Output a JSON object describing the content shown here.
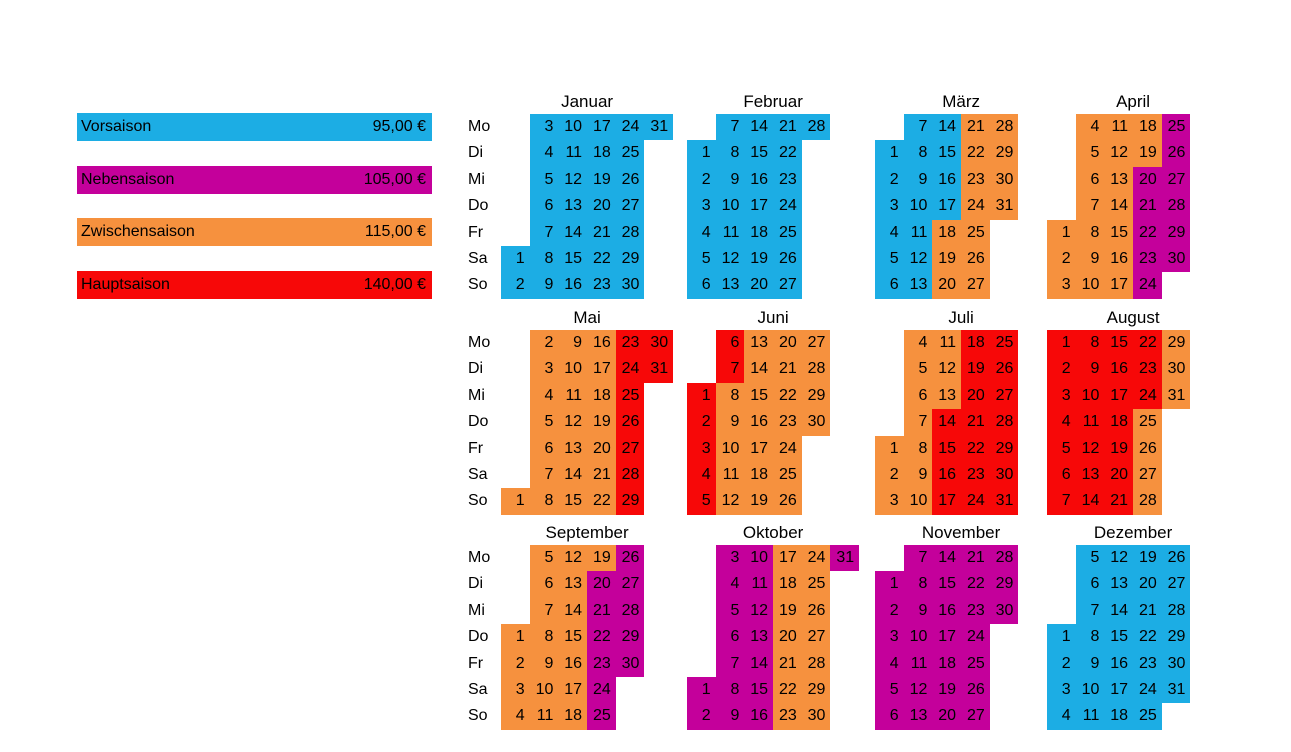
{
  "page": {
    "background": "#ffffff"
  },
  "legend": {
    "items": [
      {
        "id": "vorsaison",
        "label": "Vorsaison",
        "price": "95,00 €",
        "season_key": "b"
      },
      {
        "id": "nebensaison",
        "label": "Nebensaison",
        "price": "105,00 €",
        "season_key": "m"
      },
      {
        "id": "zwischensaison",
        "label": "Zwischensaison",
        "price": "115,00 €",
        "season_key": "o"
      },
      {
        "id": "hauptsaison",
        "label": "Hauptsaison",
        "price": "140,00 €",
        "season_key": "r"
      }
    ]
  },
  "calendar": {
    "weekday_labels": [
      "Mo",
      "Di",
      "Mi",
      "Do",
      "Fr",
      "Sa",
      "So"
    ],
    "season_colors": {
      "b": "#1CADE4",
      "m": "#C4009B",
      "o": "#F6913E",
      "r": "#F70808"
    },
    "season_names": {
      "b": "Vorsaison",
      "m": "Nebensaison",
      "o": "Zwischensaison",
      "r": "Hauptsaison"
    },
    "months": [
      {
        "name": "Januar",
        "rows": [
          [
            "",
            "3b",
            "10b",
            "17b",
            "24b",
            "31b"
          ],
          [
            "",
            "4b",
            "11b",
            "18b",
            "25b",
            ""
          ],
          [
            "",
            "5b",
            "12b",
            "19b",
            "26b",
            ""
          ],
          [
            "",
            "6b",
            "13b",
            "20b",
            "27b",
            ""
          ],
          [
            "",
            "7b",
            "14b",
            "21b",
            "28b",
            ""
          ],
          [
            "1b",
            "8b",
            "15b",
            "22b",
            "29b",
            ""
          ],
          [
            "2b",
            "9b",
            "16b",
            "23b",
            "30b",
            ""
          ]
        ]
      },
      {
        "name": "Februar",
        "rows": [
          [
            "",
            "7b",
            "14b",
            "21b",
            "28b",
            ""
          ],
          [
            "1b",
            "8b",
            "15b",
            "22b",
            "",
            ""
          ],
          [
            "2b",
            "9b",
            "16b",
            "23b",
            "",
            ""
          ],
          [
            "3b",
            "10b",
            "17b",
            "24b",
            "",
            ""
          ],
          [
            "4b",
            "11b",
            "18b",
            "25b",
            "",
            ""
          ],
          [
            "5b",
            "12b",
            "19b",
            "26b",
            "",
            ""
          ],
          [
            "6b",
            "13b",
            "20b",
            "27b",
            "",
            ""
          ]
        ]
      },
      {
        "name": "März",
        "rows": [
          [
            "",
            "7b",
            "14b",
            "21o",
            "28o",
            ""
          ],
          [
            "1b",
            "8b",
            "15b",
            "22o",
            "29o",
            ""
          ],
          [
            "2b",
            "9b",
            "16b",
            "23o",
            "30o",
            ""
          ],
          [
            "3b",
            "10b",
            "17b",
            "24o",
            "31o",
            ""
          ],
          [
            "4b",
            "11b",
            "18o",
            "25o",
            "",
            ""
          ],
          [
            "5b",
            "12b",
            "19o",
            "26o",
            "",
            ""
          ],
          [
            "6b",
            "13b",
            "20o",
            "27o",
            "",
            ""
          ]
        ]
      },
      {
        "name": "April",
        "rows": [
          [
            "",
            "4o",
            "11o",
            "18o",
            "25m",
            ""
          ],
          [
            "",
            "5o",
            "12o",
            "19o",
            "26m",
            ""
          ],
          [
            "",
            "6o",
            "13o",
            "20m",
            "27m",
            ""
          ],
          [
            "",
            "7o",
            "14o",
            "21m",
            "28m",
            ""
          ],
          [
            "1o",
            "8o",
            "15o",
            "22m",
            "29m",
            ""
          ],
          [
            "2o",
            "9o",
            "16o",
            "23m",
            "30m",
            ""
          ],
          [
            "3o",
            "10o",
            "17o",
            "24m",
            "",
            ""
          ]
        ]
      },
      {
        "name": "Mai",
        "rows": [
          [
            "",
            "2o",
            "9o",
            "16o",
            "23r",
            "30r"
          ],
          [
            "",
            "3o",
            "10o",
            "17o",
            "24r",
            "31r"
          ],
          [
            "",
            "4o",
            "11o",
            "18o",
            "25r",
            ""
          ],
          [
            "",
            "5o",
            "12o",
            "19o",
            "26r",
            ""
          ],
          [
            "",
            "6o",
            "13o",
            "20o",
            "27r",
            ""
          ],
          [
            "",
            "7o",
            "14o",
            "21o",
            "28r",
            ""
          ],
          [
            "1o",
            "8o",
            "15o",
            "22o",
            "29r",
            ""
          ]
        ]
      },
      {
        "name": "Juni",
        "rows": [
          [
            "",
            "6r",
            "13o",
            "20o",
            "27o",
            ""
          ],
          [
            "",
            "7r",
            "14o",
            "21o",
            "28o",
            ""
          ],
          [
            "1r",
            "8o",
            "15o",
            "22o",
            "29o",
            ""
          ],
          [
            "2r",
            "9o",
            "16o",
            "23o",
            "30o",
            ""
          ],
          [
            "3r",
            "10o",
            "17o",
            "24o",
            "",
            ""
          ],
          [
            "4r",
            "11o",
            "18o",
            "25o",
            "",
            ""
          ],
          [
            "5r",
            "12o",
            "19o",
            "26o",
            "",
            ""
          ]
        ]
      },
      {
        "name": "Juli",
        "rows": [
          [
            "",
            "4o",
            "11o",
            "18r",
            "25r",
            ""
          ],
          [
            "",
            "5o",
            "12o",
            "19r",
            "26r",
            ""
          ],
          [
            "",
            "6o",
            "13o",
            "20r",
            "27r",
            ""
          ],
          [
            "",
            "7o",
            "14r",
            "21r",
            "28r",
            ""
          ],
          [
            "1o",
            "8o",
            "15r",
            "22r",
            "29r",
            ""
          ],
          [
            "2o",
            "9o",
            "16r",
            "23r",
            "30r",
            ""
          ],
          [
            "3o",
            "10o",
            "17r",
            "24r",
            "31r",
            ""
          ]
        ]
      },
      {
        "name": "August",
        "rows": [
          [
            "1r",
            "8r",
            "15r",
            "22r",
            "29o",
            ""
          ],
          [
            "2r",
            "9r",
            "16r",
            "23r",
            "30o",
            ""
          ],
          [
            "3r",
            "10r",
            "17r",
            "24r",
            "31o",
            ""
          ],
          [
            "4r",
            "11r",
            "18r",
            "25o",
            "",
            ""
          ],
          [
            "5r",
            "12r",
            "19r",
            "26o",
            "",
            ""
          ],
          [
            "6r",
            "13r",
            "20r",
            "27o",
            "",
            ""
          ],
          [
            "7r",
            "14r",
            "21r",
            "28o",
            "",
            ""
          ]
        ]
      },
      {
        "name": "September",
        "rows": [
          [
            "",
            "5o",
            "12o",
            "19o",
            "26m",
            ""
          ],
          [
            "",
            "6o",
            "13o",
            "20m",
            "27m",
            ""
          ],
          [
            "",
            "7o",
            "14o",
            "21m",
            "28m",
            ""
          ],
          [
            "1o",
            "8o",
            "15o",
            "22m",
            "29m",
            ""
          ],
          [
            "2o",
            "9o",
            "16o",
            "23m",
            "30m",
            ""
          ],
          [
            "3o",
            "10o",
            "17o",
            "24m",
            "",
            ""
          ],
          [
            "4o",
            "11o",
            "18o",
            "25m",
            "",
            ""
          ]
        ]
      },
      {
        "name": "Oktober",
        "rows": [
          [
            "",
            "3m",
            "10m",
            "17o",
            "24o",
            "31m"
          ],
          [
            "",
            "4m",
            "11m",
            "18o",
            "25o",
            ""
          ],
          [
            "",
            "5m",
            "12m",
            "19o",
            "26o",
            ""
          ],
          [
            "",
            "6m",
            "13m",
            "20o",
            "27o",
            ""
          ],
          [
            "",
            "7m",
            "14m",
            "21o",
            "28o",
            ""
          ],
          [
            "1m",
            "8m",
            "15m",
            "22o",
            "29o",
            ""
          ],
          [
            "2m",
            "9m",
            "16m",
            "23o",
            "30o",
            ""
          ]
        ]
      },
      {
        "name": "November",
        "rows": [
          [
            "",
            "7m",
            "14m",
            "21m",
            "28m",
            ""
          ],
          [
            "1m",
            "8m",
            "15m",
            "22m",
            "29m",
            ""
          ],
          [
            "2m",
            "9m",
            "16m",
            "23m",
            "30m",
            ""
          ],
          [
            "3m",
            "10m",
            "17m",
            "24m",
            "",
            ""
          ],
          [
            "4m",
            "11m",
            "18m",
            "25m",
            "",
            ""
          ],
          [
            "5m",
            "12m",
            "19m",
            "26m",
            "",
            ""
          ],
          [
            "6m",
            "13m",
            "20m",
            "27m",
            "",
            ""
          ]
        ]
      },
      {
        "name": "Dezember",
        "rows": [
          [
            "",
            "5b",
            "12b",
            "19b",
            "26b",
            ""
          ],
          [
            "",
            "6b",
            "13b",
            "20b",
            "27b",
            ""
          ],
          [
            "",
            "7b",
            "14b",
            "21b",
            "28b",
            ""
          ],
          [
            "1b",
            "8b",
            "15b",
            "22b",
            "29b",
            ""
          ],
          [
            "2b",
            "9b",
            "16b",
            "23b",
            "30b",
            ""
          ],
          [
            "3b",
            "10b",
            "17b",
            "24b",
            "31b",
            ""
          ],
          [
            "4b",
            "11b",
            "18b",
            "25b",
            "",
            ""
          ]
        ]
      }
    ]
  }
}
